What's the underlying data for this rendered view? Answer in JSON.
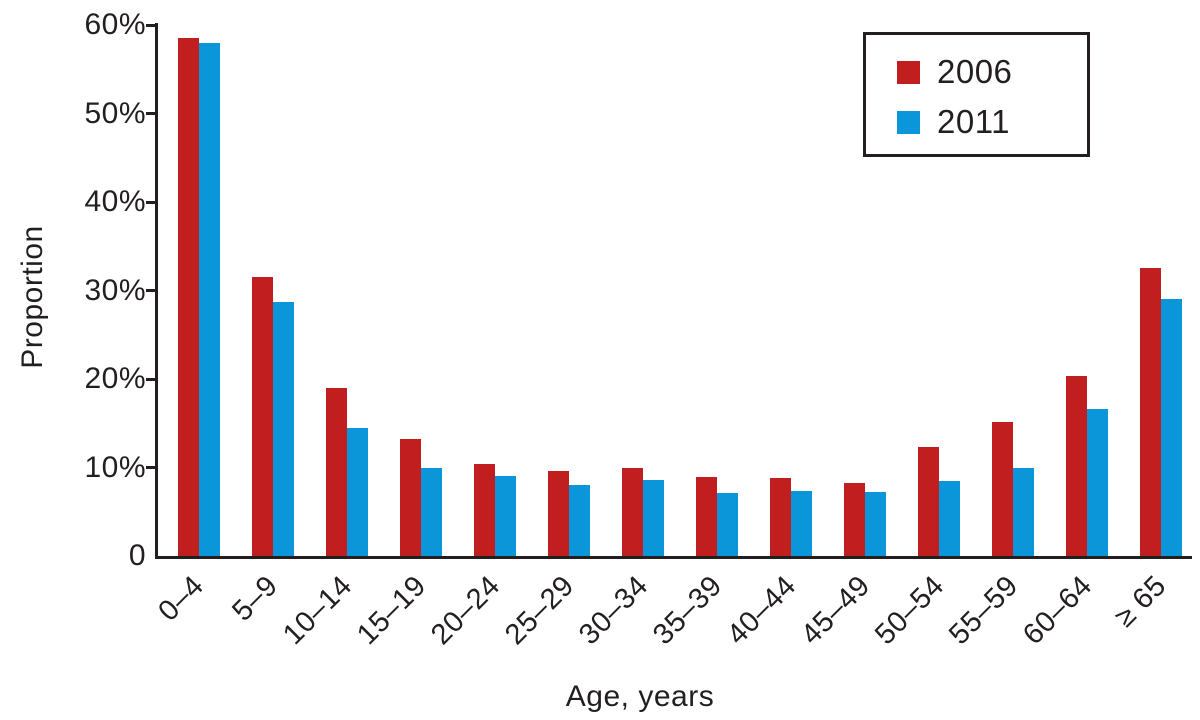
{
  "chart_data": {
    "type": "bar",
    "title": "",
    "xlabel": "Age, years",
    "ylabel": "Proportion",
    "categories": [
      "0–4",
      "5–9",
      "10–14",
      "15–19",
      "20–24",
      "25–29",
      "30–34",
      "35–39",
      "40–44",
      "45–49",
      "50–54",
      "55–59",
      "60–64",
      "≥ 65"
    ],
    "series": [
      {
        "name": "2006",
        "color": "#c11e20",
        "values": [
          58.5,
          31.5,
          19.0,
          13.2,
          10.4,
          9.6,
          9.9,
          8.9,
          8.8,
          8.3,
          12.3,
          15.1,
          20.3,
          32.5
        ]
      },
      {
        "name": "2011",
        "color": "#0a96d9",
        "values": [
          58.0,
          28.7,
          14.5,
          9.9,
          9.0,
          8.0,
          8.6,
          7.1,
          7.3,
          7.2,
          8.5,
          10.0,
          16.6,
          29.1
        ]
      }
    ],
    "y_axis": {
      "min": 0,
      "max": 60,
      "tick_step": 10,
      "ticks": [
        {
          "label": "0",
          "value": 0
        },
        {
          "label": "10%",
          "value": 10
        },
        {
          "label": "20%",
          "value": 20
        },
        {
          "label": "30%",
          "value": 30
        },
        {
          "label": "40%",
          "value": 40
        },
        {
          "label": "50%",
          "value": 50
        },
        {
          "label": "60%",
          "value": 60
        }
      ]
    },
    "legend": {
      "position": "top-right",
      "entries": [
        "2006",
        "2011"
      ]
    },
    "grid": false
  },
  "colors": {
    "axis": "#231f20",
    "text": "#231f20",
    "background": "#ffffff",
    "series_2006": "#c11e20",
    "series_2011": "#0a96d9"
  }
}
